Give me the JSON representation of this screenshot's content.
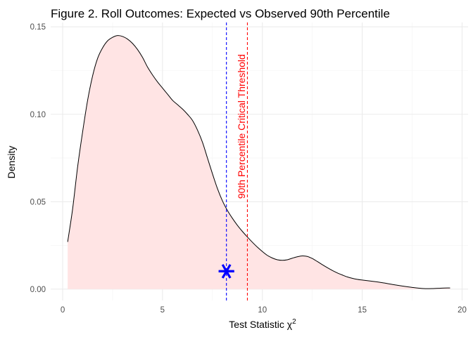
{
  "chart_data": {
    "type": "area",
    "title": "Figure 2. Roll Outcomes: Expected vs Observed 90th Percentile",
    "xlabel": "Test Statistic χ",
    "xlabel_superscript": "2",
    "ylabel": "Density",
    "xlim": [
      -0.6,
      20.3
    ],
    "ylim": [
      -0.0065,
      0.1525
    ],
    "x_ticks": [
      0,
      5,
      10,
      15,
      20
    ],
    "x_tick_labels": [
      "0",
      "5",
      "10",
      "15",
      "20"
    ],
    "x_minor_ticks": [
      2.5,
      7.5,
      12.5,
      17.5
    ],
    "y_ticks": [
      0.0,
      0.05,
      0.1,
      0.15
    ],
    "y_tick_labels": [
      "0.00",
      "0.05",
      "0.10",
      "0.15"
    ],
    "y_minor_ticks": [
      0.025,
      0.075,
      0.125
    ],
    "grid": true,
    "legend": "none",
    "fill_color": "#ffe4e4",
    "line_color": "#000000",
    "series": [
      {
        "x": [
          0.25,
          0.5,
          0.75,
          1.0,
          1.25,
          1.5,
          1.75,
          2.0,
          2.25,
          2.5,
          2.75,
          3.0,
          3.25,
          3.5,
          3.75,
          4.0,
          4.25,
          4.5,
          4.75,
          5.0,
          5.25,
          5.5,
          5.75,
          6.0,
          6.25,
          6.5,
          6.75,
          7.0,
          7.25,
          7.5,
          7.75,
          8.0,
          8.25,
          8.5,
          8.75,
          9.0,
          9.25,
          9.5,
          9.75,
          10.0,
          10.25,
          10.5,
          10.75,
          11.0,
          11.25,
          11.5,
          11.75,
          12.0,
          12.25,
          12.5,
          12.75,
          13.0,
          13.25,
          13.5,
          13.75,
          14.0,
          14.25,
          14.5,
          14.75,
          15.0,
          15.5,
          16.0,
          16.5,
          17.0,
          17.5,
          18.0,
          18.5,
          19.0,
          19.4
        ],
        "y": [
          0.027,
          0.046,
          0.07,
          0.09,
          0.108,
          0.122,
          0.132,
          0.138,
          0.142,
          0.144,
          0.145,
          0.1445,
          0.143,
          0.1405,
          0.137,
          0.1325,
          0.127,
          0.1225,
          0.1185,
          0.115,
          0.1115,
          0.108,
          0.1055,
          0.103,
          0.1,
          0.0965,
          0.091,
          0.084,
          0.075,
          0.066,
          0.0575,
          0.0505,
          0.045,
          0.0405,
          0.0365,
          0.033,
          0.0298,
          0.0268,
          0.024,
          0.0215,
          0.0193,
          0.0178,
          0.0168,
          0.0165,
          0.0168,
          0.0177,
          0.0185,
          0.019,
          0.0187,
          0.0175,
          0.0158,
          0.014,
          0.0123,
          0.0107,
          0.0093,
          0.0081,
          0.007,
          0.0062,
          0.0056,
          0.0052,
          0.0045,
          0.0037,
          0.0027,
          0.0018,
          0.001,
          0.0004,
          0.0003,
          0.0006,
          0.0007
        ]
      }
    ],
    "observed_marker": {
      "x": 8.2,
      "y": 0.0102,
      "color": "#0000ff"
    },
    "vlines": [
      {
        "x": 8.2,
        "color": "#0000ff",
        "style": "dashed"
      },
      {
        "x": 9.25,
        "color": "#ff0000",
        "style": "dashed"
      }
    ],
    "annotation": {
      "text": "90th Percentile Critical Threshold",
      "x": 9.0,
      "y": 0.093,
      "color": "#ff0000"
    }
  }
}
